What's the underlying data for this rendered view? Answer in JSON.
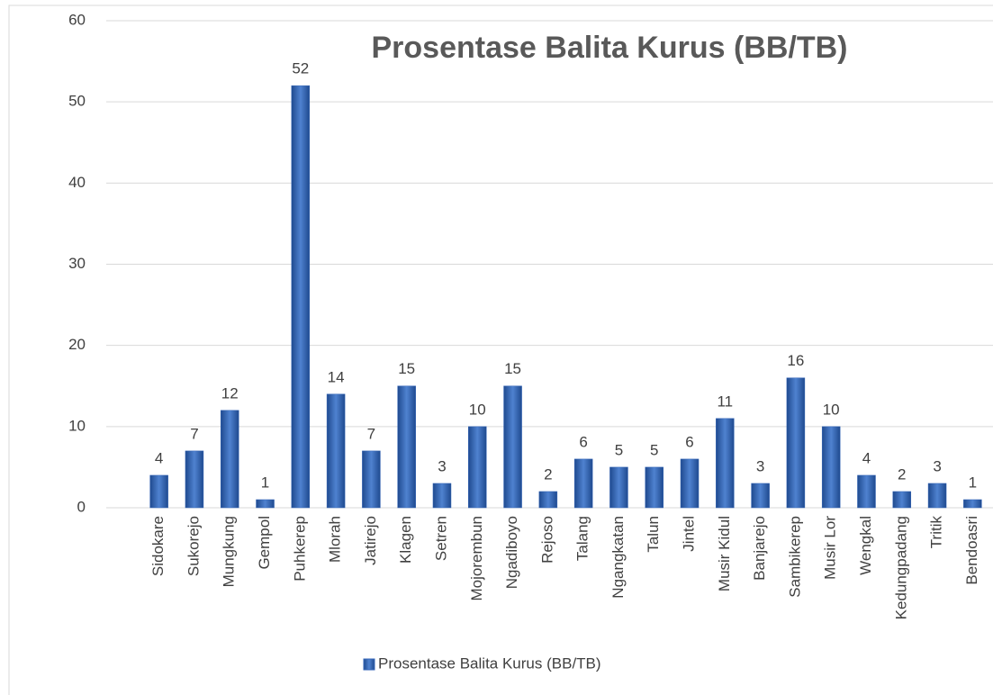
{
  "chart_data": {
    "type": "bar",
    "title": "Prosentase Balita Kurus (BB/TB)",
    "categories": [
      "Sidokare",
      "Sukorejo",
      "Mungkung",
      "Gempol",
      "Puhkerep",
      "Mlorah",
      "Jatirejo",
      "Klagen",
      "Setren",
      "Mojorembun",
      "Ngadiboyo",
      "Rejoso",
      "Talang",
      "Ngangkatan",
      "Talun",
      "Jintel",
      "Musir Kidul",
      "Banjarejo",
      "Sambikerep",
      "Musir Lor",
      "Wengkal",
      "Kedungpadang",
      "Tritik",
      "Bendoasri"
    ],
    "series": [
      {
        "name": "Prosentase Balita Kurus (BB/TB)",
        "color": "#3566b8",
        "values": [
          4,
          7,
          12,
          1,
          52,
          14,
          7,
          15,
          3,
          10,
          15,
          2,
          6,
          5,
          5,
          6,
          11,
          3,
          16,
          10,
          4,
          2,
          3,
          1
        ]
      }
    ],
    "ylim": [
      0,
      60
    ],
    "yticks": [
      0,
      10,
      20,
      30,
      40,
      50,
      60
    ],
    "grid": true,
    "legend": "bottom"
  }
}
